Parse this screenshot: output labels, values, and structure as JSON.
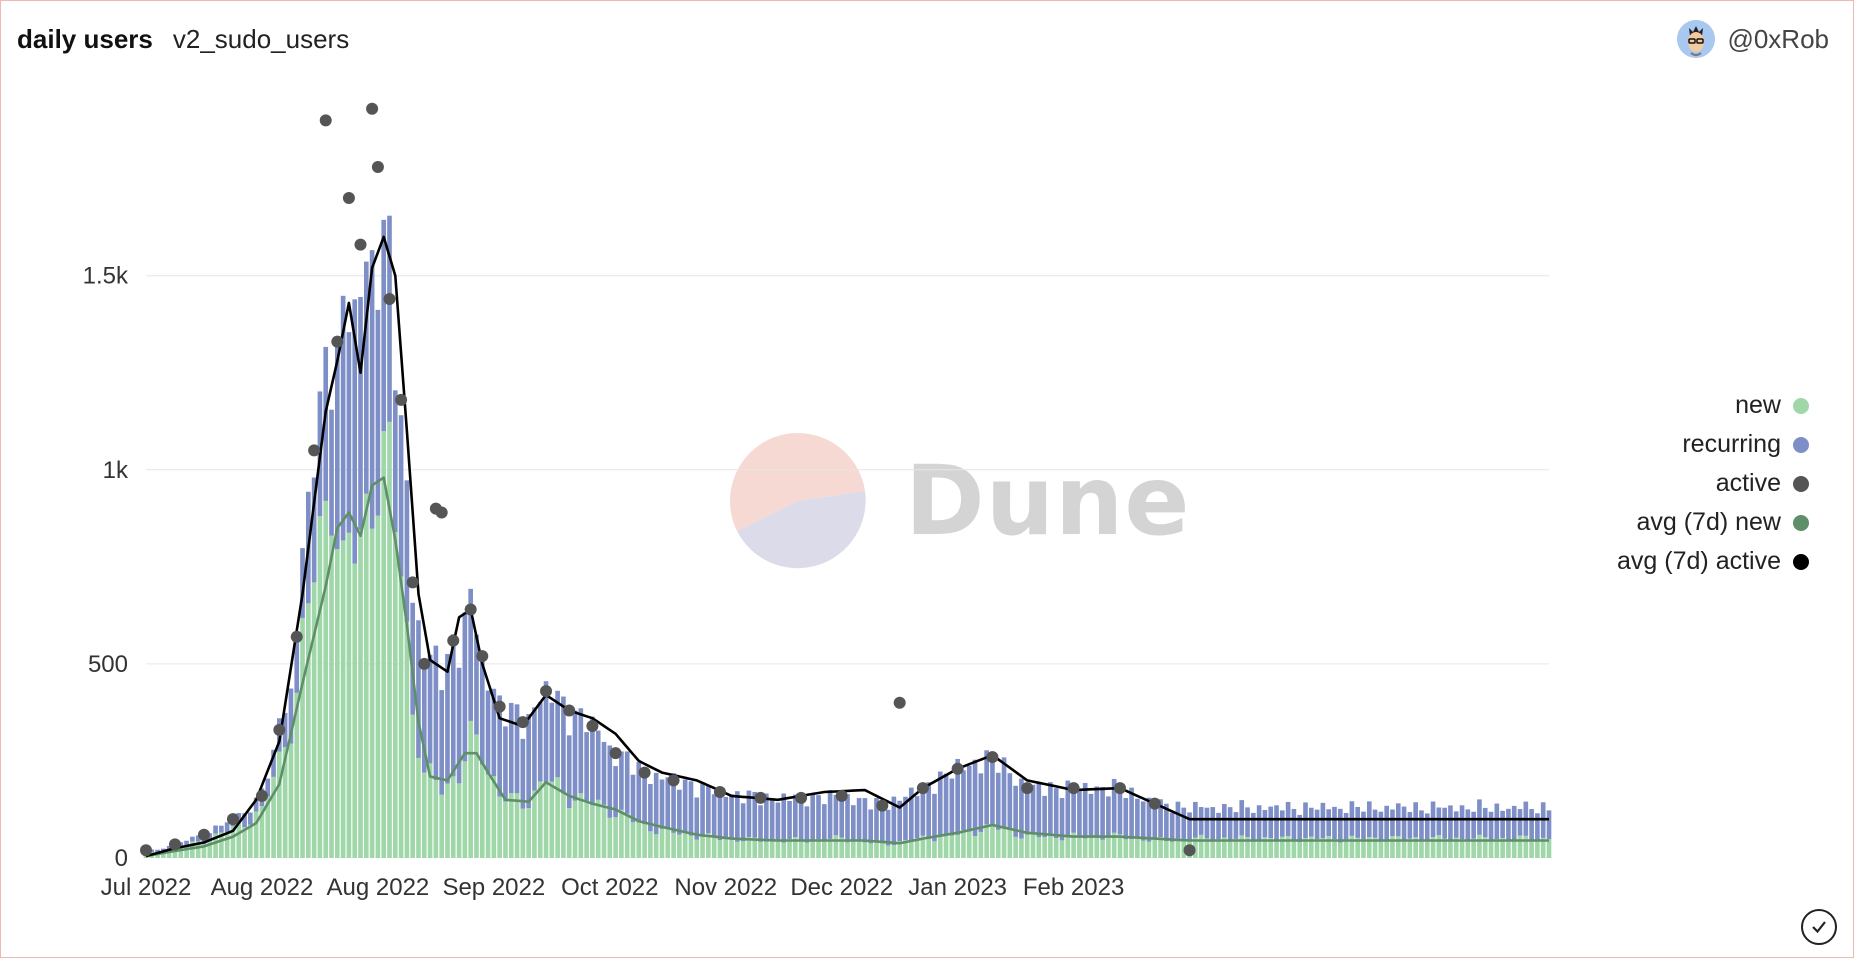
{
  "header": {
    "title": "daily users",
    "subtitle": "v2_sudo_users"
  },
  "author": {
    "name": "@0xRob",
    "icon": "avatar-icon"
  },
  "watermark": {
    "text": "Dune"
  },
  "colors": {
    "new": "#9fd7a9",
    "recurring": "#7e8fc7",
    "active": "#555555",
    "avg_new": "#5f8f68",
    "avg_active": "#000000"
  },
  "chart_data": {
    "type": "bar",
    "stacked": true,
    "x_start": "2022-07-01",
    "x_end": "2023-02-28",
    "ylim": [
      0,
      1950
    ],
    "yticks": [
      {
        "label": "0",
        "value": 0
      },
      {
        "label": "500",
        "value": 500
      },
      {
        "label": "1k",
        "value": 1000
      },
      {
        "label": "1.5k",
        "value": 1500
      }
    ],
    "xticks": [
      {
        "label": "Jul 2022",
        "date": "2022-07-01"
      },
      {
        "label": "Aug 2022",
        "date": "2022-07-21"
      },
      {
        "label": "Aug 2022",
        "date": "2022-08-10"
      },
      {
        "label": "Sep 2022",
        "date": "2022-08-30"
      },
      {
        "label": "Oct 2022",
        "date": "2022-09-19"
      },
      {
        "label": "Nov 2022",
        "date": "2022-10-09"
      },
      {
        "label": "Dec 2022",
        "date": "2022-10-29"
      },
      {
        "label": "Jan 2023",
        "date": "2022-11-18"
      },
      {
        "label": "Feb 2023",
        "date": "2022-12-08"
      }
    ],
    "grid": true,
    "legend_position": "right",
    "series": [
      {
        "name": "new",
        "type": "bar",
        "points": [
          [
            "2022-07-01",
            10
          ],
          [
            "2022-07-06",
            25
          ],
          [
            "2022-07-11",
            45
          ],
          [
            "2022-07-16",
            75
          ],
          [
            "2022-07-21",
            120
          ],
          [
            "2022-07-24",
            250
          ],
          [
            "2022-07-27",
            420
          ],
          [
            "2022-07-30",
            750
          ],
          [
            "2022-08-02",
            1000
          ],
          [
            "2022-08-04",
            700
          ],
          [
            "2022-08-06",
            820
          ],
          [
            "2022-08-08",
            900
          ],
          [
            "2022-08-10",
            1000
          ],
          [
            "2022-08-12",
            960
          ],
          [
            "2022-08-14",
            800
          ],
          [
            "2022-08-16",
            380
          ],
          [
            "2022-08-18",
            210
          ],
          [
            "2022-08-21",
            190
          ],
          [
            "2022-08-24",
            210
          ],
          [
            "2022-08-26",
            300
          ],
          [
            "2022-08-28",
            280
          ],
          [
            "2022-08-31",
            160
          ],
          [
            "2022-09-04",
            140
          ],
          [
            "2022-09-08",
            200
          ],
          [
            "2022-09-12",
            160
          ],
          [
            "2022-09-16",
            140
          ],
          [
            "2022-09-20",
            120
          ],
          [
            "2022-09-25",
            80
          ],
          [
            "2022-09-30",
            65
          ],
          [
            "2022-10-08",
            50
          ],
          [
            "2022-10-15",
            45
          ],
          [
            "2022-10-22",
            45
          ],
          [
            "2022-10-29",
            50
          ],
          [
            "2022-11-05",
            35
          ],
          [
            "2022-11-12",
            50
          ],
          [
            "2022-11-18",
            60
          ],
          [
            "2022-11-24",
            80
          ],
          [
            "2022-11-30",
            55
          ],
          [
            "2022-12-08",
            55
          ],
          [
            "2022-12-16",
            55
          ],
          [
            "2022-12-22",
            45
          ],
          [
            "2022-12-28",
            50
          ]
        ]
      },
      {
        "name": "recurring",
        "type": "bar",
        "points": [
          [
            "2022-07-01",
            5
          ],
          [
            "2022-07-06",
            10
          ],
          [
            "2022-07-11",
            15
          ],
          [
            "2022-07-16",
            25
          ],
          [
            "2022-07-21",
            40
          ],
          [
            "2022-07-24",
            80
          ],
          [
            "2022-07-27",
            150
          ],
          [
            "2022-07-30",
            300
          ],
          [
            "2022-08-02",
            380
          ],
          [
            "2022-08-04",
            600
          ],
          [
            "2022-08-06",
            600
          ],
          [
            "2022-08-08",
            650
          ],
          [
            "2022-08-10",
            600
          ],
          [
            "2022-08-12",
            480
          ],
          [
            "2022-08-14",
            380
          ],
          [
            "2022-08-16",
            330
          ],
          [
            "2022-08-18",
            290
          ],
          [
            "2022-08-21",
            310
          ],
          [
            "2022-08-24",
            350
          ],
          [
            "2022-08-26",
            340
          ],
          [
            "2022-08-28",
            240
          ],
          [
            "2022-08-31",
            230
          ],
          [
            "2022-09-04",
            210
          ],
          [
            "2022-09-08",
            230
          ],
          [
            "2022-09-12",
            220
          ],
          [
            "2022-09-16",
            200
          ],
          [
            "2022-09-20",
            150
          ],
          [
            "2022-09-25",
            140
          ],
          [
            "2022-09-30",
            135
          ],
          [
            "2022-10-08",
            120
          ],
          [
            "2022-10-15",
            110
          ],
          [
            "2022-10-22",
            110
          ],
          [
            "2022-10-29",
            110
          ],
          [
            "2022-11-05",
            100
          ],
          [
            "2022-11-12",
            130
          ],
          [
            "2022-11-18",
            170
          ],
          [
            "2022-11-24",
            180
          ],
          [
            "2022-11-30",
            125
          ],
          [
            "2022-12-08",
            125
          ],
          [
            "2022-12-16",
            125
          ],
          [
            "2022-12-22",
            95
          ],
          [
            "2022-12-28",
            80
          ]
        ]
      },
      {
        "name": "active",
        "type": "scatter",
        "points": [
          [
            "2022-07-01",
            20
          ],
          [
            "2022-07-06",
            35
          ],
          [
            "2022-07-11",
            60
          ],
          [
            "2022-07-16",
            100
          ],
          [
            "2022-07-21",
            160
          ],
          [
            "2022-07-24",
            330
          ],
          [
            "2022-07-27",
            570
          ],
          [
            "2022-07-30",
            1050
          ],
          [
            "2022-08-01",
            1900
          ],
          [
            "2022-08-03",
            1330
          ],
          [
            "2022-08-05",
            1700
          ],
          [
            "2022-08-07",
            1580
          ],
          [
            "2022-08-09",
            1930
          ],
          [
            "2022-08-10",
            1780
          ],
          [
            "2022-08-12",
            1440
          ],
          [
            "2022-08-14",
            1180
          ],
          [
            "2022-08-16",
            710
          ],
          [
            "2022-08-18",
            500
          ],
          [
            "2022-08-20",
            900
          ],
          [
            "2022-08-21",
            890
          ],
          [
            "2022-08-23",
            560
          ],
          [
            "2022-08-26",
            640
          ],
          [
            "2022-08-28",
            520
          ],
          [
            "2022-08-31",
            390
          ],
          [
            "2022-09-04",
            350
          ],
          [
            "2022-09-08",
            430
          ],
          [
            "2022-09-12",
            380
          ],
          [
            "2022-09-16",
            340
          ],
          [
            "2022-09-20",
            270
          ],
          [
            "2022-09-25",
            220
          ],
          [
            "2022-09-30",
            200
          ],
          [
            "2022-10-08",
            170
          ],
          [
            "2022-10-15",
            155
          ],
          [
            "2022-10-22",
            155
          ],
          [
            "2022-10-29",
            160
          ],
          [
            "2022-11-05",
            135
          ],
          [
            "2022-11-08",
            400
          ],
          [
            "2022-11-12",
            180
          ],
          [
            "2022-11-18",
            230
          ],
          [
            "2022-11-24",
            260
          ],
          [
            "2022-11-30",
            180
          ],
          [
            "2022-12-08",
            180
          ],
          [
            "2022-12-16",
            180
          ],
          [
            "2022-12-22",
            140
          ],
          [
            "2022-12-28",
            20
          ]
        ]
      },
      {
        "name": "avg (7d) new",
        "type": "line",
        "points": [
          [
            "2022-07-01",
            5
          ],
          [
            "2022-07-06",
            18
          ],
          [
            "2022-07-11",
            30
          ],
          [
            "2022-07-16",
            55
          ],
          [
            "2022-07-20",
            90
          ],
          [
            "2022-07-24",
            190
          ],
          [
            "2022-07-28",
            450
          ],
          [
            "2022-08-01",
            700
          ],
          [
            "2022-08-03",
            850
          ],
          [
            "2022-08-05",
            890
          ],
          [
            "2022-08-07",
            830
          ],
          [
            "2022-08-09",
            960
          ],
          [
            "2022-08-11",
            980
          ],
          [
            "2022-08-13",
            820
          ],
          [
            "2022-08-15",
            600
          ],
          [
            "2022-08-17",
            350
          ],
          [
            "2022-08-19",
            210
          ],
          [
            "2022-08-22",
            200
          ],
          [
            "2022-08-25",
            270
          ],
          [
            "2022-08-27",
            270
          ],
          [
            "2022-08-29",
            220
          ],
          [
            "2022-09-01",
            150
          ],
          [
            "2022-09-05",
            145
          ],
          [
            "2022-09-08",
            195
          ],
          [
            "2022-09-12",
            160
          ],
          [
            "2022-09-16",
            140
          ],
          [
            "2022-09-20",
            125
          ],
          [
            "2022-09-24",
            95
          ],
          [
            "2022-09-28",
            80
          ],
          [
            "2022-10-04",
            60
          ],
          [
            "2022-10-10",
            50
          ],
          [
            "2022-10-18",
            45
          ],
          [
            "2022-10-26",
            45
          ],
          [
            "2022-11-02",
            45
          ],
          [
            "2022-11-08",
            38
          ],
          [
            "2022-11-12",
            50
          ],
          [
            "2022-11-18",
            65
          ],
          [
            "2022-11-24",
            85
          ],
          [
            "2022-11-30",
            65
          ],
          [
            "2022-12-08",
            55
          ],
          [
            "2022-12-16",
            55
          ],
          [
            "2022-12-22",
            50
          ],
          [
            "2022-12-28",
            45
          ]
        ]
      },
      {
        "name": "avg (7d) active",
        "type": "line",
        "points": [
          [
            "2022-07-01",
            5
          ],
          [
            "2022-07-06",
            25
          ],
          [
            "2022-07-11",
            40
          ],
          [
            "2022-07-16",
            70
          ],
          [
            "2022-07-20",
            150
          ],
          [
            "2022-07-24",
            300
          ],
          [
            "2022-07-28",
            680
          ],
          [
            "2022-08-01",
            1150
          ],
          [
            "2022-08-03",
            1280
          ],
          [
            "2022-08-05",
            1430
          ],
          [
            "2022-08-07",
            1250
          ],
          [
            "2022-08-09",
            1520
          ],
          [
            "2022-08-11",
            1600
          ],
          [
            "2022-08-13",
            1500
          ],
          [
            "2022-08-15",
            1100
          ],
          [
            "2022-08-17",
            680
          ],
          [
            "2022-08-19",
            510
          ],
          [
            "2022-08-22",
            480
          ],
          [
            "2022-08-24",
            620
          ],
          [
            "2022-08-26",
            640
          ],
          [
            "2022-08-28",
            500
          ],
          [
            "2022-08-31",
            360
          ],
          [
            "2022-09-04",
            340
          ],
          [
            "2022-09-08",
            420
          ],
          [
            "2022-09-12",
            380
          ],
          [
            "2022-09-16",
            360
          ],
          [
            "2022-09-20",
            320
          ],
          [
            "2022-09-24",
            250
          ],
          [
            "2022-09-28",
            220
          ],
          [
            "2022-10-04",
            200
          ],
          [
            "2022-10-10",
            160
          ],
          [
            "2022-10-18",
            150
          ],
          [
            "2022-10-26",
            170
          ],
          [
            "2022-11-02",
            175
          ],
          [
            "2022-11-08",
            130
          ],
          [
            "2022-11-12",
            180
          ],
          [
            "2022-11-18",
            230
          ],
          [
            "2022-11-24",
            265
          ],
          [
            "2022-11-30",
            200
          ],
          [
            "2022-12-08",
            175
          ],
          [
            "2022-12-16",
            180
          ],
          [
            "2022-12-22",
            140
          ],
          [
            "2022-12-28",
            100
          ]
        ]
      }
    ]
  }
}
